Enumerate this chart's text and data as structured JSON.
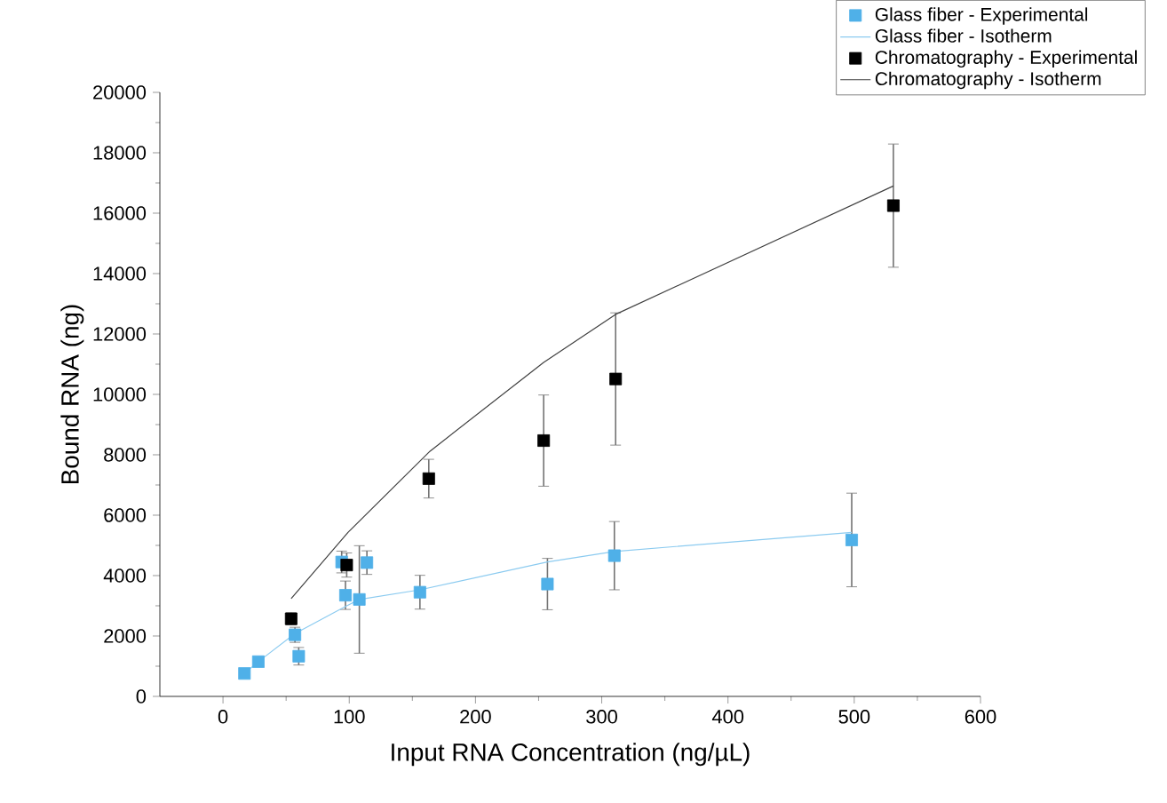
{
  "chart_data": {
    "type": "scatter",
    "xlabel": "Input RNA Concentration (ng/µL)",
    "ylabel": "Bound RNA (ng)",
    "xlim": [
      -50,
      600
    ],
    "ylim": [
      0,
      20000
    ],
    "xticks": [
      0,
      100,
      200,
      300,
      400,
      500,
      600
    ],
    "yticks": [
      0,
      2000,
      4000,
      6000,
      8000,
      10000,
      12000,
      14000,
      16000,
      18000,
      20000
    ],
    "legend": "top right",
    "series": [
      {
        "name": "Glass fiber - Experimental",
        "marker": "square",
        "color": "#4fb0e8",
        "x": [
          17,
          28,
          57,
          60,
          94,
          97,
          108,
          114,
          156,
          257,
          310,
          498
        ],
        "values": [
          760,
          1150,
          2040,
          1330,
          4450,
          3350,
          3210,
          4430,
          3450,
          3720,
          4660,
          5180
        ],
        "errors": [
          null,
          null,
          250,
          290,
          360,
          470,
          1780,
          390,
          560,
          850,
          1130,
          1550
        ]
      },
      {
        "name": "Glass fiber - Isotherm",
        "type": "line",
        "marker": "none",
        "color": "#8ccbf0",
        "x": [
          17,
          28,
          57,
          97,
          108,
          156,
          257,
          310,
          498
        ],
        "values": [
          760,
          1150,
          2080,
          2980,
          3210,
          3530,
          4450,
          4800,
          5430
        ]
      },
      {
        "name": "Chromatography - Experimental",
        "marker": "square",
        "color": "#000000",
        "x": [
          54,
          98,
          163,
          254,
          311,
          531
        ],
        "values": [
          2570,
          4350,
          7210,
          8470,
          10510,
          16250
        ],
        "errors": [
          200,
          400,
          640,
          1510,
          2190,
          2040
        ]
      },
      {
        "name": "Chromatography - Isotherm",
        "type": "line",
        "marker": "none",
        "color": "#404040",
        "x": [
          54,
          99,
          164,
          254,
          311,
          531
        ],
        "values": [
          3240,
          5430,
          8120,
          11060,
          12650,
          16900
        ]
      }
    ]
  }
}
